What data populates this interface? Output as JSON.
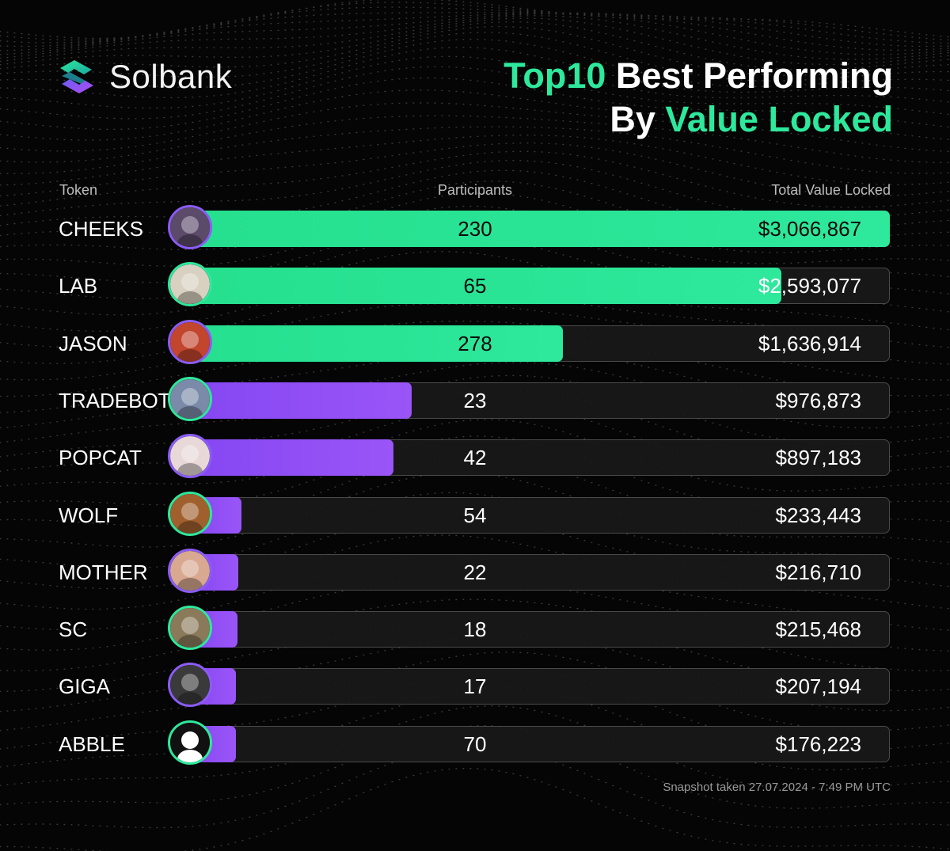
{
  "brand": {
    "name": "Solbank"
  },
  "title": {
    "line1_accent": "Top10",
    "line1_rest": " Best Performing",
    "line2_start": "By ",
    "line2_accent": "Value Locked"
  },
  "colors": {
    "accent_green": "#2ee89c",
    "accent_purple": "#9a55f7"
  },
  "chart_data": {
    "type": "bar",
    "columns": [
      "Token",
      "Participants",
      "Total Value Locked"
    ],
    "categories": [
      "CHEEKS",
      "LAB",
      "JASON",
      "TRADEBOT",
      "POPCAT",
      "WOLF",
      "MOTHER",
      "SC",
      "GIGA",
      "ABBLE"
    ],
    "series": [
      {
        "name": "Participants",
        "values": [
          230,
          65,
          278,
          23,
          42,
          54,
          22,
          18,
          17,
          70
        ]
      },
      {
        "name": "Total Value Locked",
        "values": [
          3066867,
          2593077,
          1636914,
          976873,
          897183,
          233443,
          216710,
          215468,
          207194,
          176223
        ]
      }
    ],
    "rows": [
      {
        "token": "CHEEKS",
        "participants": "230",
        "tvl": "$3,066,867",
        "tvl_value": 3066867,
        "color": "green",
        "icon": "cheeks-avatar-icon"
      },
      {
        "token": "LAB",
        "participants": "65",
        "tvl": "$2,593,077",
        "tvl_value": 2593077,
        "color": "green",
        "icon": "lab-avatar-icon"
      },
      {
        "token": "JASON",
        "participants": "278",
        "tvl": "$1,636,914",
        "tvl_value": 1636914,
        "color": "green",
        "icon": "jason-avatar-icon"
      },
      {
        "token": "TRADEBOT",
        "participants": "23",
        "tvl": "$976,873",
        "tvl_value": 976873,
        "color": "purple",
        "icon": "tradebot-avatar-icon"
      },
      {
        "token": "POPCAT",
        "participants": "42",
        "tvl": "$897,183",
        "tvl_value": 897183,
        "color": "purple",
        "icon": "popcat-avatar-icon"
      },
      {
        "token": "WOLF",
        "participants": "54",
        "tvl": "$233,443",
        "tvl_value": 233443,
        "color": "purple",
        "icon": "wolf-avatar-icon"
      },
      {
        "token": "MOTHER",
        "participants": "22",
        "tvl": "$216,710",
        "tvl_value": 216710,
        "color": "purple",
        "icon": "mother-avatar-icon"
      },
      {
        "token": "SC",
        "participants": "18",
        "tvl": "$215,468",
        "tvl_value": 215468,
        "color": "purple",
        "icon": "sc-avatar-icon"
      },
      {
        "token": "GIGA",
        "participants": "17",
        "tvl": "$207,194",
        "tvl_value": 207194,
        "color": "purple",
        "icon": "giga-avatar-icon"
      },
      {
        "token": "ABBLE",
        "participants": "70",
        "tvl": "$176,223",
        "tvl_value": 176223,
        "color": "purple",
        "icon": "abble-avatar-icon"
      }
    ],
    "snapshot": "Snapshot taken 27.07.2024 - 7:49 PM UTC"
  }
}
